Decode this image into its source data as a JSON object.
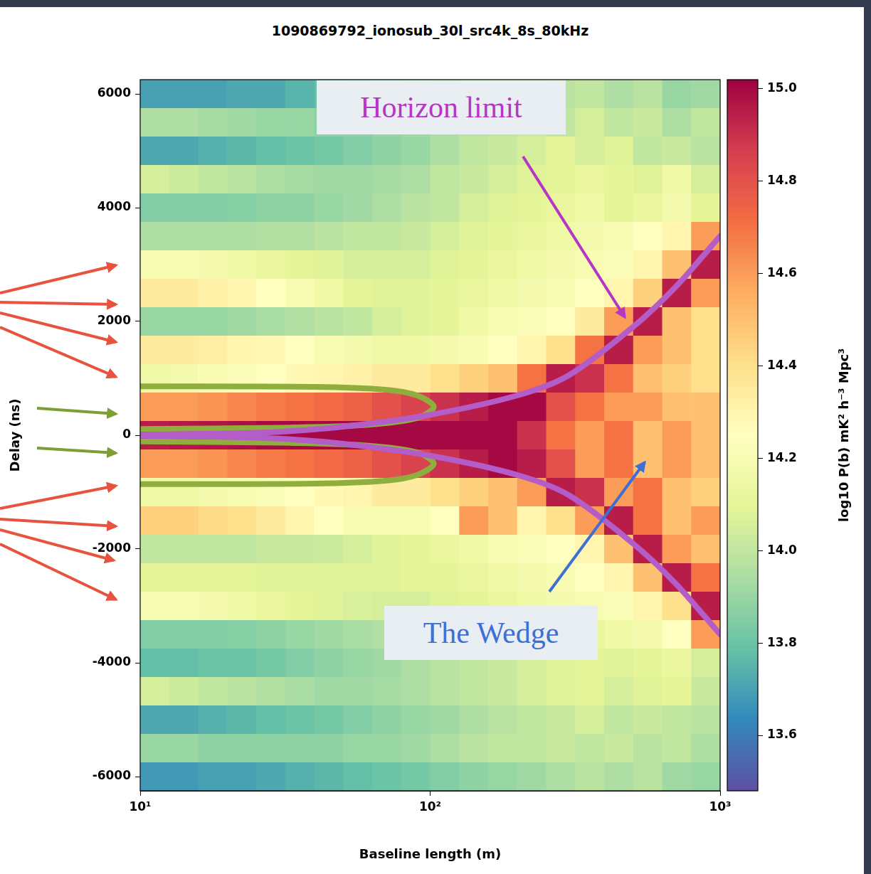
{
  "chart_data": {
    "type": "heatmap",
    "title": "1090869792_ionosub_30l_src4k_8s_80kHz",
    "x_label": "Baseline length (m)",
    "y_label": "Delay (ns)",
    "log": "x",
    "grid": false,
    "xlim": [
      10,
      1000
    ],
    "xticks": [
      {
        "value": 10,
        "label": "10¹"
      },
      {
        "value": 100,
        "label": "10²"
      },
      {
        "value": 1000,
        "label": "10³"
      }
    ],
    "ylim": [
      -6250,
      6250
    ],
    "yticks": [
      -6000,
      -4000,
      -2000,
      0,
      2000,
      4000,
      6000
    ],
    "x_edges": [
      10,
      12.59,
      15.85,
      19.95,
      25.12,
      31.62,
      39.81,
      50.12,
      63.1,
      79.43,
      100,
      125.9,
      158.5,
      199.5,
      251.2,
      316.2,
      398.1,
      501.2,
      631,
      794.3,
      1000
    ],
    "y_edges": [
      6250,
      5750,
      5250,
      4750,
      4250,
      3750,
      3250,
      2750,
      2250,
      1750,
      1250,
      750,
      250,
      -250,
      -750,
      -1250,
      -1750,
      -2250,
      -2750,
      -3250,
      -3750,
      -4250,
      -4750,
      -5250,
      -5750,
      -6250
    ],
    "cells": [
      [
        13.7,
        13.7,
        13.7,
        13.72,
        13.72,
        13.75,
        13.78,
        13.8,
        13.85,
        13.88,
        13.9,
        13.92,
        13.95,
        13.95,
        13.98,
        14.0,
        13.95,
        13.98,
        13.9,
        13.92
      ],
      [
        13.95,
        13.95,
        13.93,
        13.92,
        13.9,
        13.9,
        13.88,
        13.88,
        13.9,
        13.92,
        13.95,
        13.98,
        14.0,
        14.02,
        14.0,
        14.05,
        14.0,
        14.02,
        13.95,
        14.0
      ],
      [
        13.72,
        13.72,
        13.74,
        13.76,
        13.78,
        13.8,
        13.82,
        13.85,
        13.88,
        13.9,
        13.95,
        14.0,
        14.02,
        14.05,
        14.1,
        14.05,
        14.08,
        14.0,
        14.02,
        13.98
      ],
      [
        14.05,
        14.03,
        14.0,
        13.98,
        13.95,
        13.93,
        13.92,
        13.92,
        13.93,
        13.95,
        14.0,
        14.02,
        14.05,
        14.08,
        14.1,
        14.12,
        14.1,
        14.08,
        14.15,
        14.05
      ],
      [
        13.85,
        13.85,
        13.85,
        13.86,
        13.88,
        13.88,
        13.9,
        13.92,
        13.95,
        13.98,
        14.0,
        14.05,
        14.08,
        14.1,
        14.12,
        14.15,
        14.1,
        14.12,
        14.18,
        14.1
      ],
      [
        13.95,
        13.95,
        13.95,
        13.95,
        13.96,
        13.96,
        13.98,
        14.0,
        14.0,
        14.02,
        14.05,
        14.08,
        14.1,
        14.12,
        14.15,
        14.18,
        14.2,
        14.25,
        14.3,
        14.6
      ],
      [
        14.2,
        14.2,
        14.18,
        14.15,
        14.12,
        14.1,
        14.08,
        14.05,
        14.05,
        14.05,
        14.08,
        14.1,
        14.12,
        14.15,
        14.18,
        14.2,
        14.22,
        14.3,
        14.5,
        14.95
      ],
      [
        14.35,
        14.35,
        14.32,
        14.3,
        14.25,
        14.2,
        14.15,
        14.1,
        14.08,
        14.08,
        14.1,
        14.12,
        14.15,
        14.18,
        14.2,
        14.25,
        14.3,
        14.45,
        14.95,
        14.6
      ],
      [
        13.9,
        13.9,
        13.9,
        13.92,
        13.94,
        13.96,
        13.98,
        14.0,
        14.05,
        14.08,
        14.1,
        14.15,
        14.2,
        14.22,
        14.25,
        14.35,
        14.6,
        14.95,
        14.5,
        14.4
      ],
      [
        14.35,
        14.35,
        14.33,
        14.3,
        14.28,
        14.25,
        14.2,
        14.18,
        14.15,
        14.15,
        14.18,
        14.2,
        14.25,
        14.3,
        14.4,
        14.7,
        14.95,
        14.6,
        14.5,
        14.4
      ],
      [
        14.15,
        14.18,
        14.2,
        14.22,
        14.25,
        14.28,
        14.3,
        14.32,
        14.35,
        14.35,
        14.4,
        14.45,
        14.5,
        14.7,
        14.95,
        14.9,
        14.7,
        14.5,
        14.45,
        14.4
      ],
      [
        14.6,
        14.6,
        14.62,
        14.65,
        14.68,
        14.7,
        14.72,
        14.75,
        14.8,
        14.85,
        14.9,
        14.95,
        15.0,
        15.0,
        14.8,
        14.7,
        14.6,
        14.6,
        14.5,
        14.5
      ],
      [
        14.95,
        14.96,
        14.97,
        14.98,
        15.0,
        15.0,
        15.0,
        15.0,
        15.0,
        15.0,
        15.0,
        15.0,
        15.0,
        14.9,
        14.7,
        14.6,
        14.7,
        14.5,
        14.6,
        14.5
      ],
      [
        14.6,
        14.6,
        14.62,
        14.65,
        14.68,
        14.7,
        14.72,
        14.75,
        14.8,
        14.85,
        14.9,
        14.95,
        15.0,
        14.95,
        14.8,
        14.6,
        14.7,
        14.5,
        14.6,
        14.5
      ],
      [
        14.15,
        14.15,
        14.18,
        14.2,
        14.22,
        14.25,
        14.28,
        14.3,
        14.35,
        14.35,
        14.4,
        14.45,
        14.5,
        14.6,
        14.95,
        14.9,
        14.6,
        14.7,
        14.5,
        14.45
      ],
      [
        14.45,
        14.45,
        14.42,
        14.4,
        14.35,
        14.3,
        14.25,
        14.2,
        14.2,
        14.2,
        14.25,
        14.6,
        14.5,
        14.3,
        14.4,
        14.6,
        14.95,
        14.7,
        14.5,
        14.6
      ],
      [
        14.0,
        14.0,
        14.0,
        14.0,
        14.02,
        14.02,
        14.03,
        14.05,
        14.08,
        14.1,
        14.12,
        14.15,
        14.2,
        14.22,
        14.25,
        14.3,
        14.5,
        14.95,
        14.6,
        14.5
      ],
      [
        14.1,
        14.1,
        14.1,
        14.1,
        14.08,
        14.08,
        14.08,
        14.08,
        14.08,
        14.1,
        14.1,
        14.12,
        14.15,
        14.18,
        14.2,
        14.25,
        14.3,
        14.5,
        14.95,
        14.7
      ],
      [
        14.2,
        14.2,
        14.18,
        14.15,
        14.12,
        14.1,
        14.08,
        14.06,
        14.05,
        14.05,
        14.08,
        14.1,
        14.12,
        14.15,
        14.18,
        14.2,
        14.22,
        14.3,
        14.4,
        14.95
      ],
      [
        13.85,
        13.85,
        13.85,
        13.86,
        13.88,
        13.9,
        13.92,
        13.94,
        13.96,
        13.98,
        14.0,
        14.02,
        14.05,
        14.08,
        14.1,
        14.12,
        14.15,
        14.18,
        14.25,
        14.6
      ],
      [
        13.78,
        13.78,
        13.8,
        13.8,
        13.82,
        13.85,
        13.88,
        13.9,
        13.92,
        13.95,
        13.98,
        14.0,
        14.02,
        14.05,
        14.08,
        14.1,
        14.08,
        14.1,
        14.12,
        14.05
      ],
      [
        14.05,
        14.03,
        14.0,
        13.98,
        13.96,
        13.94,
        13.92,
        13.92,
        13.93,
        13.95,
        13.98,
        14.0,
        14.02,
        14.05,
        14.08,
        14.1,
        14.05,
        14.08,
        14.1,
        14.02
      ],
      [
        13.72,
        13.72,
        13.74,
        13.76,
        13.78,
        13.8,
        13.82,
        13.85,
        13.88,
        13.9,
        13.92,
        13.95,
        13.98,
        14.0,
        14.02,
        14.05,
        14.0,
        14.02,
        14.0,
        13.98
      ],
      [
        13.9,
        13.9,
        13.88,
        13.88,
        13.88,
        13.88,
        13.88,
        13.9,
        13.9,
        13.92,
        13.95,
        13.98,
        14.0,
        14.0,
        14.02,
        14.0,
        14.02,
        13.98,
        14.0,
        13.95
      ],
      [
        13.68,
        13.68,
        13.7,
        13.7,
        13.72,
        13.74,
        13.76,
        13.78,
        13.8,
        13.82,
        13.85,
        13.88,
        13.9,
        13.92,
        13.95,
        13.98,
        13.95,
        13.98,
        13.92,
        13.9
      ]
    ],
    "colorbar": {
      "label": "log10 P(b) mK² h⁻³ Mpc³",
      "range": [
        13.48,
        15.02
      ],
      "ticks": [
        13.6,
        13.8,
        {
          "value": 14,
          "label": "14.0"
        },
        14.2,
        14.4,
        14.6,
        14.8,
        {
          "value": 15,
          "label": "15.0"
        }
      ]
    },
    "curves": [
      {
        "color": "#b45cc8",
        "x": [
          10,
          20,
          30,
          50,
          100,
          200,
          300,
          500,
          700,
          1000
        ],
        "y": [
          10,
          30,
          60,
          150,
          360,
          700,
          1050,
          1900,
          2600,
          3500
        ]
      },
      {
        "color": "#b45cc8",
        "x": [
          10,
          20,
          30,
          50,
          100,
          200,
          300,
          500,
          700,
          1000
        ],
        "y": [
          -10,
          -30,
          -60,
          -150,
          -360,
          -700,
          -1050,
          -1900,
          -2600,
          -3500
        ]
      },
      {
        "color": "#8fae3e",
        "x": [
          10,
          40,
          70,
          90,
          103,
          90,
          60,
          30,
          10
        ],
        "y": [
          860,
          850,
          800,
          700,
          500,
          300,
          180,
          130,
          110
        ]
      },
      {
        "color": "#8fae3e",
        "x": [
          10,
          40,
          70,
          90,
          103,
          90,
          60,
          30,
          10
        ],
        "y": [
          -860,
          -850,
          -800,
          -700,
          -500,
          -300,
          -180,
          -130,
          -110
        ]
      }
    ],
    "annotations": [
      {
        "text": "Horizon limit",
        "color": "#b536c6"
      },
      {
        "text": "The Wedge",
        "color": "#3d6fd6"
      }
    ]
  }
}
